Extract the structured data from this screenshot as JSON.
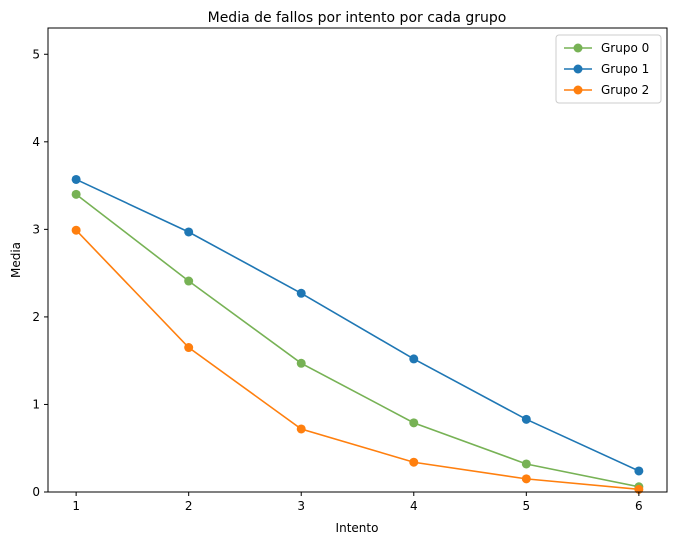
{
  "chart_data": {
    "type": "line",
    "title": "Media de fallos por intento por cada grupo",
    "xlabel": "Intento",
    "ylabel": "Media",
    "x": [
      1,
      2,
      3,
      4,
      5,
      6
    ],
    "xlim": [
      0.75,
      6.25
    ],
    "ylim": [
      0,
      5.3
    ],
    "xticks": [
      1,
      2,
      3,
      4,
      5,
      6
    ],
    "yticks": [
      0,
      1,
      2,
      3,
      4,
      5
    ],
    "grid": false,
    "legend_position": "top-right",
    "series": [
      {
        "name": "Grupo 0",
        "color": "#77b255",
        "values": [
          3.4,
          2.41,
          1.47,
          0.79,
          0.32,
          0.06
        ]
      },
      {
        "name": "Grupo 1",
        "color": "#1f77b4",
        "values": [
          3.57,
          2.97,
          2.27,
          1.52,
          0.83,
          0.24
        ]
      },
      {
        "name": "Grupo 2",
        "color": "#ff7f0e",
        "values": [
          2.99,
          1.65,
          0.72,
          0.34,
          0.15,
          0.03
        ]
      }
    ]
  }
}
